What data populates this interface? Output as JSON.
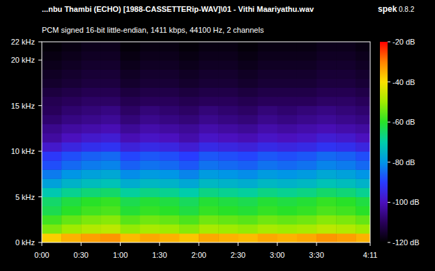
{
  "chart_data": {
    "type": "heatmap",
    "title": "...nbu Thambi (ECHO) [1988-CASSETTERip-WAV]\\01 - Vithi Maariyathu.wav",
    "subtitle": "PCM signed 16-bit little-endian, 1411 kbps, 44100 Hz, 2 channels",
    "annotations": [
      "spek",
      "0.8.2"
    ],
    "xlim": [
      0,
      251
    ],
    "xticks": [
      {
        "value": 0,
        "label": "0:00"
      },
      {
        "value": 30,
        "label": "0:30"
      },
      {
        "value": 60,
        "label": "1:00"
      },
      {
        "value": 90,
        "label": "1:30"
      },
      {
        "value": 120,
        "label": "2:00"
      },
      {
        "value": 150,
        "label": "2:30"
      },
      {
        "value": 180,
        "label": "3:00"
      },
      {
        "value": 210,
        "label": "3:30"
      },
      {
        "value": 251,
        "label": "4:11"
      }
    ],
    "ylim": [
      0,
      22
    ],
    "yticks": [
      {
        "value": 0,
        "label": "0 kHz"
      },
      {
        "value": 5,
        "label": "5 kHz"
      },
      {
        "value": 10,
        "label": "10 kHz"
      },
      {
        "value": 15,
        "label": "15 kHz"
      },
      {
        "value": 20,
        "label": "20 kHz"
      },
      {
        "value": 22,
        "label": "22 kHz"
      }
    ],
    "colorbar_range": [
      -120,
      -20
    ],
    "colorbar_ticks": [
      {
        "value": -20,
        "label": "-20 dB"
      },
      {
        "value": -40,
        "label": "-40 dB"
      },
      {
        "value": -60,
        "label": "-60 dB"
      },
      {
        "value": -80,
        "label": "-80 dB"
      },
      {
        "value": -100,
        "label": "-100 dB"
      },
      {
        "value": -120,
        "label": "-120 dB"
      }
    ],
    "x_bins": [
      0,
      15,
      30,
      45,
      60,
      75,
      90,
      105,
      120,
      135,
      150,
      165,
      180,
      195,
      210,
      225,
      240,
      251
    ],
    "y_bins": [
      0,
      1,
      2,
      3,
      4,
      5,
      6,
      7,
      8,
      9,
      10,
      11,
      12,
      13,
      14,
      15,
      16,
      17,
      18,
      19,
      20,
      21,
      22
    ],
    "cells": [
      [
        -38,
        -35,
        -33,
        -32,
        -36,
        -34,
        -35,
        -37,
        -34,
        -35,
        -36,
        -34,
        -35,
        -34,
        -32,
        -33,
        -35
      ],
      [
        -53,
        -50,
        -48,
        -47,
        -51,
        -49,
        -50,
        -52,
        -49,
        -50,
        -51,
        -49,
        -50,
        -49,
        -47,
        -48,
        -50
      ],
      [
        -58,
        -55,
        -53,
        -52,
        -56,
        -54,
        -55,
        -57,
        -54,
        -55,
        -56,
        -54,
        -55,
        -54,
        -52,
        -53,
        -55
      ],
      [
        -63,
        -60,
        -58,
        -57,
        -61,
        -59,
        -60,
        -62,
        -59,
        -60,
        -61,
        -59,
        -60,
        -59,
        -57,
        -58,
        -60
      ],
      [
        -65,
        -62,
        -60,
        -59,
        -63,
        -61,
        -62,
        -64,
        -61,
        -62,
        -63,
        -61,
        -62,
        -61,
        -59,
        -60,
        -62
      ],
      [
        -71,
        -68,
        -66,
        -65,
        -69,
        -67,
        -68,
        -70,
        -67,
        -68,
        -69,
        -67,
        -68,
        -67,
        -65,
        -66,
        -68
      ],
      [
        -78,
        -75,
        -73,
        -72,
        -76,
        -74,
        -75,
        -77,
        -74,
        -75,
        -76,
        -74,
        -75,
        -74,
        -72,
        -73,
        -75
      ],
      [
        -83,
        -80,
        -78,
        -77,
        -81,
        -79,
        -80,
        -82,
        -79,
        -80,
        -81,
        -79,
        -80,
        -79,
        -77,
        -78,
        -80
      ],
      [
        -88,
        -85,
        -83,
        -82,
        -86,
        -84,
        -85,
        -87,
        -84,
        -85,
        -86,
        -84,
        -85,
        -84,
        -82,
        -83,
        -85
      ],
      [
        -91,
        -88,
        -86,
        -85,
        -89,
        -87,
        -88,
        -90,
        -87,
        -88,
        -89,
        -87,
        -88,
        -87,
        -85,
        -86,
        -88
      ],
      [
        -98,
        -95,
        -93,
        -92,
        -96,
        -94,
        -95,
        -97,
        -94,
        -95,
        -96,
        -94,
        -95,
        -94,
        -92,
        -93,
        -95
      ],
      [
        -103,
        -100,
        -98,
        -97,
        -101,
        -99,
        -100,
        -102,
        -99,
        -100,
        -101,
        -99,
        -100,
        -99,
        -97,
        -98,
        -100
      ],
      [
        -105,
        -103,
        -102,
        -101,
        -104,
        -102,
        -103,
        -104,
        -102,
        -103,
        -104,
        -102,
        -103,
        -102,
        -101,
        -102,
        -103
      ],
      [
        -108,
        -106,
        -105,
        -104,
        -107,
        -105,
        -106,
        -107,
        -105,
        -106,
        -107,
        -105,
        -106,
        -105,
        -104,
        -105,
        -106
      ],
      [
        -110,
        -108,
        -107,
        -106,
        -109,
        -107,
        -108,
        -109,
        -107,
        -108,
        -109,
        -107,
        -108,
        -107,
        -106,
        -107,
        -108
      ],
      [
        -111,
        -110,
        -109,
        -109,
        -111,
        -110,
        -110,
        -111,
        -110,
        -110,
        -111,
        -110,
        -110,
        -110,
        -109,
        -109,
        -110
      ],
      [
        -113,
        -112,
        -111,
        -111,
        -113,
        -112,
        -112,
        -113,
        -112,
        -112,
        -113,
        -112,
        -112,
        -112,
        -111,
        -111,
        -112
      ],
      [
        -115,
        -114,
        -113,
        -113,
        -115,
        -114,
        -114,
        -115,
        -114,
        -114,
        -115,
        -114,
        -114,
        -114,
        -113,
        -113,
        -114
      ],
      [
        -116,
        -115,
        -114,
        -114,
        -116,
        -115,
        -115,
        -116,
        -115,
        -115,
        -116,
        -115,
        -115,
        -115,
        -114,
        -114,
        -115
      ],
      [
        -117,
        -116,
        -115,
        -115,
        -117,
        -116,
        -116,
        -117,
        -116,
        -116,
        -117,
        -116,
        -116,
        -116,
        -115,
        -115,
        -116
      ],
      [
        -118,
        -117,
        -116,
        -116,
        -118,
        -117,
        -117,
        -118,
        -117,
        -117,
        -118,
        -117,
        -117,
        -117,
        -116,
        -116,
        -117
      ],
      [
        -119,
        -118,
        -117,
        -117,
        -119,
        -118,
        -118,
        -119,
        -118,
        -118,
        -119,
        -118,
        -118,
        -118,
        -117,
        -117,
        -118
      ]
    ]
  }
}
